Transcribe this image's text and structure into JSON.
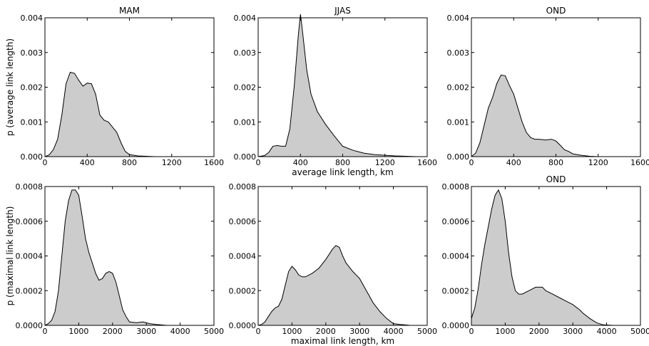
{
  "chart_data": [
    {
      "type": "area",
      "title": "MAM",
      "xlabel": "",
      "ylabel": "p (average link length)",
      "xlim": [
        0,
        1600
      ],
      "ylim": [
        0,
        0.004
      ],
      "xticks": [
        "0",
        "400",
        "800",
        "1200",
        "1600"
      ],
      "yticks": [
        "0.000",
        "0.001",
        "0.002",
        "0.003",
        "0.004"
      ],
      "x": [
        0,
        40,
        80,
        120,
        160,
        200,
        240,
        280,
        320,
        360,
        400,
        440,
        480,
        520,
        560,
        600,
        640,
        680,
        720,
        760,
        800,
        880,
        960,
        1040,
        1200,
        1400,
        1600
      ],
      "y": [
        0.0,
        5e-05,
        0.0002,
        0.0005,
        0.0012,
        0.0021,
        0.00243,
        0.0024,
        0.0022,
        0.00203,
        0.00212,
        0.0021,
        0.0018,
        0.0012,
        0.00105,
        0.001,
        0.00085,
        0.0007,
        0.0004,
        0.00015,
        6e-05,
        2e-05,
        1e-05,
        0.0,
        0.0,
        0.0,
        0.0
      ]
    },
    {
      "type": "area",
      "title": "JJAS",
      "xlabel": "average link length, km",
      "ylabel": "",
      "xlim": [
        0,
        1600
      ],
      "ylim": [
        0,
        0.004
      ],
      "xticks": [
        "0",
        "400",
        "800",
        "1200",
        "1600"
      ],
      "yticks": [
        "0.000",
        "0.001",
        "0.002",
        "0.003",
        "0.004"
      ],
      "x": [
        0,
        60,
        100,
        140,
        180,
        220,
        260,
        300,
        340,
        380,
        400,
        420,
        460,
        500,
        560,
        640,
        720,
        800,
        900,
        1000,
        1100,
        1200,
        1300,
        1400,
        1500,
        1600
      ],
      "y": [
        0.0,
        3e-05,
        0.00012,
        0.0003,
        0.00032,
        0.0003,
        0.0003,
        0.0008,
        0.002,
        0.0035,
        0.0041,
        0.0036,
        0.0025,
        0.0018,
        0.0013,
        0.00092,
        0.0006,
        0.0003,
        0.00018,
        0.0001,
        6e-05,
        4e-05,
        2e-05,
        1e-05,
        0.0,
        0.0
      ]
    },
    {
      "type": "area",
      "title": "OND",
      "xlabel": "",
      "ylabel": "",
      "xlim": [
        0,
        1600
      ],
      "ylim": [
        0,
        0.004
      ],
      "xticks": [
        "0",
        "400",
        "800",
        "1200",
        "1600"
      ],
      "yticks": [
        "0.000",
        "0.001",
        "0.002",
        "0.003",
        "0.004"
      ],
      "x": [
        0,
        40,
        80,
        120,
        160,
        200,
        240,
        280,
        320,
        360,
        400,
        440,
        480,
        520,
        560,
        600,
        640,
        700,
        760,
        800,
        840,
        880,
        920,
        960,
        1040,
        1120,
        1200,
        1400,
        1600
      ],
      "y": [
        0.0,
        0.0001,
        0.0004,
        0.0009,
        0.0014,
        0.0017,
        0.0021,
        0.00235,
        0.00233,
        0.00205,
        0.0018,
        0.0014,
        0.001,
        0.0007,
        0.00055,
        0.0005,
        0.0005,
        0.00048,
        0.0005,
        0.00045,
        0.00033,
        0.0002,
        0.00015,
        8e-05,
        4e-05,
        1e-05,
        0.0,
        0.0,
        0.0
      ]
    },
    {
      "type": "area",
      "title": "",
      "xlabel": "",
      "ylabel": "p (maximal link length)",
      "xlim": [
        0,
        5000
      ],
      "ylim": [
        0,
        0.0008
      ],
      "xticks": [
        "0",
        "1000",
        "2000",
        "3000",
        "4000",
        "5000"
      ],
      "yticks": [
        "0.0000",
        "0.0002",
        "0.0004",
        "0.0006",
        "0.0008"
      ],
      "x": [
        0,
        100,
        200,
        300,
        400,
        500,
        600,
        700,
        800,
        900,
        1000,
        1100,
        1200,
        1300,
        1400,
        1500,
        1600,
        1700,
        1800,
        1900,
        2000,
        2100,
        2200,
        2300,
        2400,
        2500,
        2700,
        2900,
        3100,
        3300,
        3600,
        4000,
        5000
      ],
      "y": [
        0.0,
        1e-05,
        3e-05,
        8e-05,
        0.0002,
        0.0004,
        0.0006,
        0.00072,
        0.00078,
        0.00078,
        0.00075,
        0.00063,
        0.0005,
        0.00042,
        0.00036,
        0.0003,
        0.00026,
        0.00027,
        0.0003,
        0.00031,
        0.0003,
        0.00025,
        0.00017,
        9e-05,
        5e-05,
        2e-05,
        1.5e-05,
        2e-05,
        1e-05,
        5e-06,
        0.0,
        0.0,
        0.0
      ]
    },
    {
      "type": "area",
      "title": "",
      "xlabel": "maximal link length, km",
      "ylabel": "",
      "xlim": [
        0,
        5000
      ],
      "ylim": [
        0,
        0.0008
      ],
      "xticks": [
        "0",
        "1000",
        "2000",
        "3000",
        "4000",
        "5000"
      ],
      "yticks": [
        "0.0000",
        "0.0002",
        "0.0004",
        "0.0006",
        "0.0008"
      ],
      "x": [
        0,
        100,
        200,
        300,
        400,
        500,
        600,
        700,
        800,
        900,
        1000,
        1100,
        1200,
        1300,
        1400,
        1600,
        1800,
        2000,
        2200,
        2300,
        2400,
        2500,
        2600,
        2800,
        3000,
        3200,
        3400,
        3600,
        3800,
        4000,
        4200,
        4500,
        5000
      ],
      "y": [
        0.0,
        5e-06,
        2e-05,
        5e-05,
        8e-05,
        0.0001,
        0.00011,
        0.00015,
        0.00023,
        0.00031,
        0.00034,
        0.00032,
        0.00029,
        0.00028,
        0.00028,
        0.0003,
        0.00033,
        0.00038,
        0.00044,
        0.00046,
        0.00045,
        0.0004,
        0.00036,
        0.00031,
        0.00027,
        0.0002,
        0.00013,
        8e-05,
        4e-05,
        1e-05,
        5e-06,
        0.0,
        0.0
      ]
    },
    {
      "type": "area",
      "title": "OND",
      "xlabel": "",
      "ylabel": "",
      "xlim": [
        0,
        5000
      ],
      "ylim": [
        0,
        0.0008
      ],
      "xticks": [
        "0",
        "1000",
        "2000",
        "3000",
        "4000",
        "5000"
      ],
      "yticks": [
        "0.0000",
        "0.0002",
        "0.0004",
        "0.0006",
        "0.0008"
      ],
      "x": [
        0,
        100,
        200,
        300,
        400,
        500,
        600,
        700,
        800,
        900,
        1000,
        1100,
        1200,
        1300,
        1400,
        1500,
        1700,
        1900,
        2100,
        2200,
        2400,
        2600,
        2800,
        3000,
        3200,
        3300,
        3500,
        3700,
        3900,
        4200,
        5000
      ],
      "y": [
        4e-05,
        0.0001,
        0.00021,
        0.00035,
        0.00047,
        0.00057,
        0.00067,
        0.00075,
        0.00078,
        0.00073,
        0.0006,
        0.00042,
        0.00028,
        0.0002,
        0.00018,
        0.00018,
        0.0002,
        0.00022,
        0.00022,
        0.0002,
        0.00018,
        0.00016,
        0.00014,
        0.00012,
        9e-05,
        7e-05,
        4e-05,
        1.5e-05,
        3e-06,
        0.0,
        0.0
      ]
    }
  ]
}
